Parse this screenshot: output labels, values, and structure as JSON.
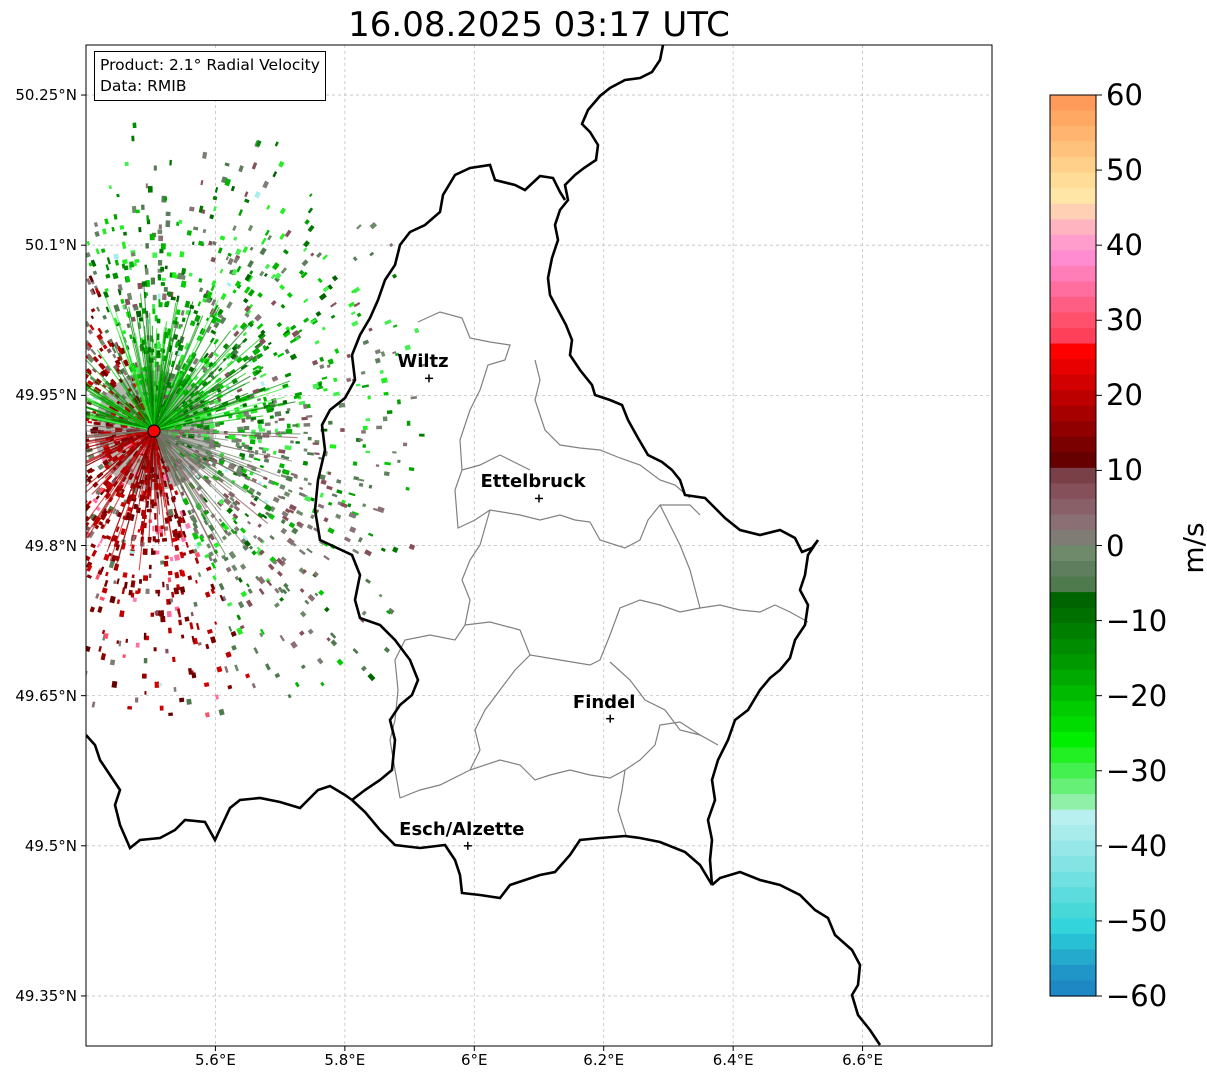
{
  "title": "16.08.2025 03:17 UTC",
  "info": {
    "product": "Product: 2.1° Radial Velocity",
    "data": "Data: RMIB"
  },
  "axes": {
    "lat_ticks": [
      "50.25°N",
      "50.1°N",
      "49.95°N",
      "49.8°N",
      "49.65°N",
      "49.5°N",
      "49.35°N"
    ],
    "lon_ticks": [
      "5.6°E",
      "5.8°E",
      "6°E",
      "6.2°E",
      "6.4°E",
      "6.6°E"
    ],
    "lat_range": [
      49.3,
      50.3
    ],
    "lon_range": [
      5.4,
      6.8
    ],
    "grid": true
  },
  "cities": [
    {
      "name": "Wiltz",
      "lon": 5.93,
      "lat": 49.967
    },
    {
      "name": "Ettelbruck",
      "lon": 6.1,
      "lat": 49.847
    },
    {
      "name": "Findel",
      "lon": 6.21,
      "lat": 49.627
    },
    {
      "name": "Esch/Alzette",
      "lon": 5.99,
      "lat": 49.5
    }
  ],
  "radar_site": {
    "lon": 5.505,
    "lat": 49.915,
    "color": "#ff0000"
  },
  "colorbar": {
    "label": "m/s",
    "min": -60,
    "max": 60,
    "ticks": [
      "60",
      "50",
      "40",
      "30",
      "20",
      "10",
      "0",
      "−10",
      "−20",
      "−30",
      "−40",
      "−50",
      "−60"
    ],
    "colors_top_to_bottom": [
      "#ff9b5a",
      "#ffa864",
      "#ffb570",
      "#ffc27c",
      "#ffd08a",
      "#ffdc98",
      "#ffe6a6",
      "#ffd0b4",
      "#ffb4c0",
      "#ff9ecc",
      "#ff8cd0",
      "#ff7eb8",
      "#ff6e9e",
      "#ff5e84",
      "#ff506c",
      "#ff4058",
      "#ff0000",
      "#e80000",
      "#d20000",
      "#bc0000",
      "#a60000",
      "#900000",
      "#7a0000",
      "#660000",
      "#7a4048",
      "#86505a",
      "#8a6068",
      "#8a7074",
      "#7e7c74",
      "#6e8a6a",
      "#5e7e5e",
      "#4e7a4e",
      "#006400",
      "#007000",
      "#007e00",
      "#008c00",
      "#009a00",
      "#00aa00",
      "#00ba00",
      "#00cc00",
      "#00dc00",
      "#00ee00",
      "#22f022",
      "#44f050",
      "#66f077",
      "#90f0a8",
      "#b8f0f0",
      "#a8ecec",
      "#96e8e8",
      "#84e4e4",
      "#70e0e0",
      "#5cdcdc",
      "#48d8d8",
      "#34d4dc",
      "#28c0d4",
      "#24aacc",
      "#2096c8",
      "#1e88c4"
    ]
  },
  "colors": {
    "country_border": "#000000",
    "canton_border": "#808080",
    "grid": "#c0c0c0",
    "velocity_green": "#00a000",
    "velocity_red": "#a00000",
    "velocity_gray": "#607a60"
  }
}
